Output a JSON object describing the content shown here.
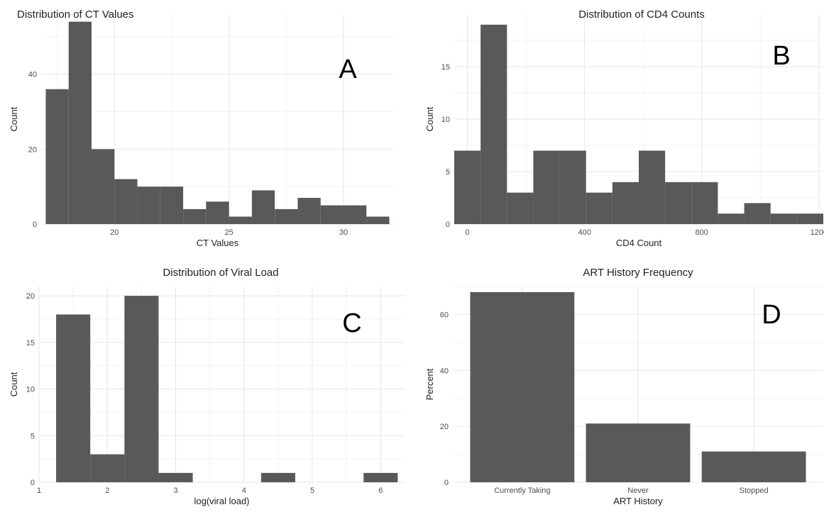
{
  "figure": {
    "panels": [
      {
        "letter": "A"
      },
      {
        "letter": "B"
      },
      {
        "letter": "C"
      },
      {
        "letter": "D"
      }
    ]
  },
  "chart_data": [
    {
      "type": "bar",
      "title": "Distribution of CT Values",
      "xlabel": "CT Values",
      "ylabel": "Count",
      "panel_letter": "A",
      "bin_edges": [
        17,
        18,
        19,
        20,
        21,
        22,
        23,
        24,
        25,
        26,
        27,
        28,
        29,
        30,
        31,
        32
      ],
      "values": [
        36,
        54,
        20,
        12,
        10,
        10,
        4,
        6,
        2,
        9,
        4,
        7,
        5,
        5,
        2
      ],
      "xlim": [
        16.8,
        32.2
      ],
      "ylim": [
        0,
        56
      ],
      "xticks": [
        20,
        25,
        30
      ],
      "yticks": [
        0,
        20,
        40
      ],
      "grid": true,
      "color": "#595959"
    },
    {
      "type": "bar",
      "title": "Distribution of CD4 Counts",
      "xlabel": "CD4 Count",
      "ylabel": "Count",
      "panel_letter": "B",
      "bin_edges": [
        -45,
        45,
        135,
        225,
        315,
        405,
        495,
        585,
        675,
        765,
        855,
        945,
        1035,
        1125,
        1215
      ],
      "values": [
        7,
        19,
        3,
        7,
        7,
        3,
        4,
        7,
        4,
        4,
        1,
        2,
        1,
        1
      ],
      "xlim": [
        -45,
        1215
      ],
      "ylim": [
        0,
        20
      ],
      "xticks": [
        0,
        400,
        800,
        1200
      ],
      "yticks": [
        0,
        5,
        10,
        15
      ],
      "grid": true,
      "color": "#595959"
    },
    {
      "type": "bar",
      "title": "Distribution of Viral Load",
      "xlabel": "log(viral load)",
      "ylabel": "Count",
      "panel_letter": "C",
      "bin_edges": [
        1.25,
        1.75,
        2.25,
        2.75,
        3.25,
        3.75,
        4.25,
        4.75,
        5.25,
        5.75,
        6.25
      ],
      "values": [
        18,
        3,
        20,
        1,
        0,
        0,
        1,
        0,
        0,
        1
      ],
      "xlim": [
        1.0,
        6.35
      ],
      "ylim": [
        0,
        21
      ],
      "xticks": [
        1,
        2,
        3,
        4,
        5,
        6
      ],
      "yticks": [
        0,
        5,
        10,
        15,
        20
      ],
      "grid": true,
      "color": "#595959"
    },
    {
      "type": "bar",
      "title": "ART History Frequency",
      "xlabel": "ART History",
      "ylabel": "Percent",
      "panel_letter": "D",
      "categories": [
        "Currently Taking",
        "Never",
        "Stopped"
      ],
      "values": [
        68,
        21,
        11
      ],
      "ylim": [
        0,
        70
      ],
      "yticks": [
        0,
        20,
        40,
        60
      ],
      "grid": true,
      "color": "#595959"
    }
  ]
}
